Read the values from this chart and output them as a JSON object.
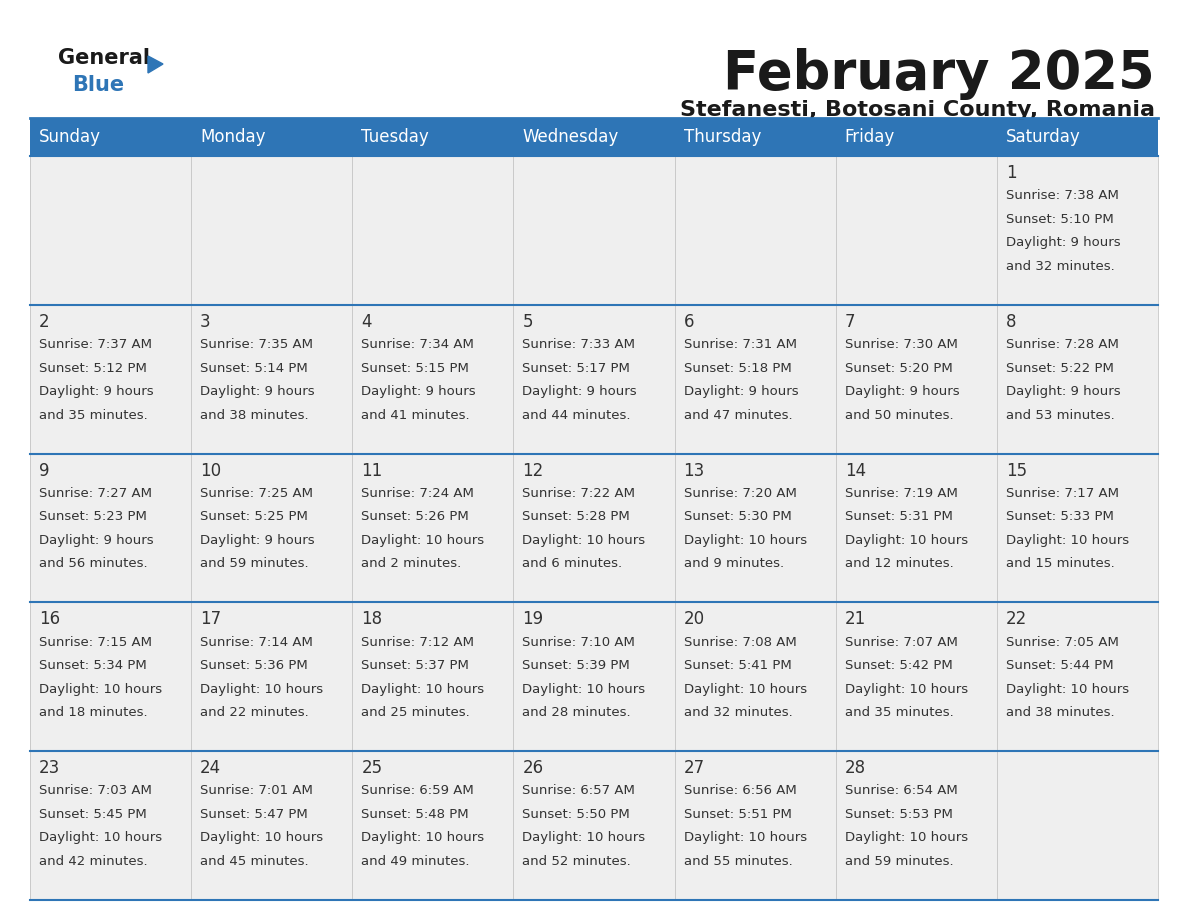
{
  "title": "February 2025",
  "subtitle": "Stefanesti, Botosani County, Romania",
  "header_color": "#2E75B6",
  "header_text_color": "#FFFFFF",
  "bg_color": "#FFFFFF",
  "cell_bg": "#EFEFEF",
  "border_color": "#2E75B6",
  "text_color": "#333333",
  "day_names": [
    "Sunday",
    "Monday",
    "Tuesday",
    "Wednesday",
    "Thursday",
    "Friday",
    "Saturday"
  ],
  "days": [
    {
      "day": 1,
      "col": 6,
      "row": 0,
      "sunrise": "7:38 AM",
      "sunset": "5:10 PM",
      "daylight_line1": "Daylight: 9 hours",
      "daylight_line2": "and 32 minutes."
    },
    {
      "day": 2,
      "col": 0,
      "row": 1,
      "sunrise": "7:37 AM",
      "sunset": "5:12 PM",
      "daylight_line1": "Daylight: 9 hours",
      "daylight_line2": "and 35 minutes."
    },
    {
      "day": 3,
      "col": 1,
      "row": 1,
      "sunrise": "7:35 AM",
      "sunset": "5:14 PM",
      "daylight_line1": "Daylight: 9 hours",
      "daylight_line2": "and 38 minutes."
    },
    {
      "day": 4,
      "col": 2,
      "row": 1,
      "sunrise": "7:34 AM",
      "sunset": "5:15 PM",
      "daylight_line1": "Daylight: 9 hours",
      "daylight_line2": "and 41 minutes."
    },
    {
      "day": 5,
      "col": 3,
      "row": 1,
      "sunrise": "7:33 AM",
      "sunset": "5:17 PM",
      "daylight_line1": "Daylight: 9 hours",
      "daylight_line2": "and 44 minutes."
    },
    {
      "day": 6,
      "col": 4,
      "row": 1,
      "sunrise": "7:31 AM",
      "sunset": "5:18 PM",
      "daylight_line1": "Daylight: 9 hours",
      "daylight_line2": "and 47 minutes."
    },
    {
      "day": 7,
      "col": 5,
      "row": 1,
      "sunrise": "7:30 AM",
      "sunset": "5:20 PM",
      "daylight_line1": "Daylight: 9 hours",
      "daylight_line2": "and 50 minutes."
    },
    {
      "day": 8,
      "col": 6,
      "row": 1,
      "sunrise": "7:28 AM",
      "sunset": "5:22 PM",
      "daylight_line1": "Daylight: 9 hours",
      "daylight_line2": "and 53 minutes."
    },
    {
      "day": 9,
      "col": 0,
      "row": 2,
      "sunrise": "7:27 AM",
      "sunset": "5:23 PM",
      "daylight_line1": "Daylight: 9 hours",
      "daylight_line2": "and 56 minutes."
    },
    {
      "day": 10,
      "col": 1,
      "row": 2,
      "sunrise": "7:25 AM",
      "sunset": "5:25 PM",
      "daylight_line1": "Daylight: 9 hours",
      "daylight_line2": "and 59 minutes."
    },
    {
      "day": 11,
      "col": 2,
      "row": 2,
      "sunrise": "7:24 AM",
      "sunset": "5:26 PM",
      "daylight_line1": "Daylight: 10 hours",
      "daylight_line2": "and 2 minutes."
    },
    {
      "day": 12,
      "col": 3,
      "row": 2,
      "sunrise": "7:22 AM",
      "sunset": "5:28 PM",
      "daylight_line1": "Daylight: 10 hours",
      "daylight_line2": "and 6 minutes."
    },
    {
      "day": 13,
      "col": 4,
      "row": 2,
      "sunrise": "7:20 AM",
      "sunset": "5:30 PM",
      "daylight_line1": "Daylight: 10 hours",
      "daylight_line2": "and 9 minutes."
    },
    {
      "day": 14,
      "col": 5,
      "row": 2,
      "sunrise": "7:19 AM",
      "sunset": "5:31 PM",
      "daylight_line1": "Daylight: 10 hours",
      "daylight_line2": "and 12 minutes."
    },
    {
      "day": 15,
      "col": 6,
      "row": 2,
      "sunrise": "7:17 AM",
      "sunset": "5:33 PM",
      "daylight_line1": "Daylight: 10 hours",
      "daylight_line2": "and 15 minutes."
    },
    {
      "day": 16,
      "col": 0,
      "row": 3,
      "sunrise": "7:15 AM",
      "sunset": "5:34 PM",
      "daylight_line1": "Daylight: 10 hours",
      "daylight_line2": "and 18 minutes."
    },
    {
      "day": 17,
      "col": 1,
      "row": 3,
      "sunrise": "7:14 AM",
      "sunset": "5:36 PM",
      "daylight_line1": "Daylight: 10 hours",
      "daylight_line2": "and 22 minutes."
    },
    {
      "day": 18,
      "col": 2,
      "row": 3,
      "sunrise": "7:12 AM",
      "sunset": "5:37 PM",
      "daylight_line1": "Daylight: 10 hours",
      "daylight_line2": "and 25 minutes."
    },
    {
      "day": 19,
      "col": 3,
      "row": 3,
      "sunrise": "7:10 AM",
      "sunset": "5:39 PM",
      "daylight_line1": "Daylight: 10 hours",
      "daylight_line2": "and 28 minutes."
    },
    {
      "day": 20,
      "col": 4,
      "row": 3,
      "sunrise": "7:08 AM",
      "sunset": "5:41 PM",
      "daylight_line1": "Daylight: 10 hours",
      "daylight_line2": "and 32 minutes."
    },
    {
      "day": 21,
      "col": 5,
      "row": 3,
      "sunrise": "7:07 AM",
      "sunset": "5:42 PM",
      "daylight_line1": "Daylight: 10 hours",
      "daylight_line2": "and 35 minutes."
    },
    {
      "day": 22,
      "col": 6,
      "row": 3,
      "sunrise": "7:05 AM",
      "sunset": "5:44 PM",
      "daylight_line1": "Daylight: 10 hours",
      "daylight_line2": "and 38 minutes."
    },
    {
      "day": 23,
      "col": 0,
      "row": 4,
      "sunrise": "7:03 AM",
      "sunset": "5:45 PM",
      "daylight_line1": "Daylight: 10 hours",
      "daylight_line2": "and 42 minutes."
    },
    {
      "day": 24,
      "col": 1,
      "row": 4,
      "sunrise": "7:01 AM",
      "sunset": "5:47 PM",
      "daylight_line1": "Daylight: 10 hours",
      "daylight_line2": "and 45 minutes."
    },
    {
      "day": 25,
      "col": 2,
      "row": 4,
      "sunrise": "6:59 AM",
      "sunset": "5:48 PM",
      "daylight_line1": "Daylight: 10 hours",
      "daylight_line2": "and 49 minutes."
    },
    {
      "day": 26,
      "col": 3,
      "row": 4,
      "sunrise": "6:57 AM",
      "sunset": "5:50 PM",
      "daylight_line1": "Daylight: 10 hours",
      "daylight_line2": "and 52 minutes."
    },
    {
      "day": 27,
      "col": 4,
      "row": 4,
      "sunrise": "6:56 AM",
      "sunset": "5:51 PM",
      "daylight_line1": "Daylight: 10 hours",
      "daylight_line2": "and 55 minutes."
    },
    {
      "day": 28,
      "col": 5,
      "row": 4,
      "sunrise": "6:54 AM",
      "sunset": "5:53 PM",
      "daylight_line1": "Daylight: 10 hours",
      "daylight_line2": "and 59 minutes."
    }
  ]
}
